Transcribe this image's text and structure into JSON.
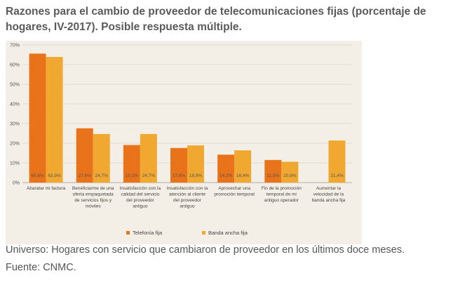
{
  "title": "Razones para el cambio de proveedor de telecomunicaciones fijas (porcentaje de hogares, IV-2017). Posible respuesta múltiple.",
  "chart_data": {
    "type": "bar",
    "categories": [
      "Abaratar mi factura",
      "Beneficiarme de una oferta empaquetada de servicios fijos y móviles",
      "Insatisfacción con la calidad del servicio del proveedor antiguo",
      "Insatisfacción con la atención al cliente del proveedor antiguo",
      "Aprovechar una promoción temporal",
      "Fin de la promoción temporal de mi antiguo operador",
      "Aumentar la velocidad de la banda ancha fija"
    ],
    "category_lines": [
      [
        "Abaratar mi factura"
      ],
      [
        "Beneficiarme de una",
        "oferta empaquetada",
        "de servicios fijos y",
        "móviles"
      ],
      [
        "Insatisfacción con la",
        "calidad del servicio",
        "del proveedor",
        "antiguo"
      ],
      [
        "Insatisfacción con la",
        "atención al cliente",
        "del proveedor",
        "antiguo"
      ],
      [
        "Aprovechar una",
        "promoción temporal"
      ],
      [
        "Fin de la promoción",
        "temporal de mi",
        "antiguo operador"
      ],
      [
        "Aumentar la",
        "velocidad de la",
        "banda ancha fija"
      ]
    ],
    "series": [
      {
        "name": "Telefonía fija",
        "color": "#e8731a",
        "values": [
          65.6,
          27.6,
          19.1,
          17.6,
          14.2,
          11.5,
          null
        ],
        "labels": [
          "65,6%",
          "27,6%",
          "19,1%",
          "17,6%",
          "14,2%",
          "11,5%",
          ""
        ]
      },
      {
        "name": "Banda ancha fija",
        "color": "#f0a830",
        "values": [
          63.9,
          24.7,
          24.7,
          18.9,
          16.4,
          10.6,
          21.4
        ],
        "labels": [
          "63,9%",
          "24,7%",
          "24,7%",
          "18,9%",
          "16,4%",
          "10,6%",
          "21,4%"
        ]
      }
    ],
    "ylim": [
      0,
      70
    ],
    "yticks": [
      "0%",
      "10%",
      "20%",
      "30%",
      "40%",
      "50%",
      "60%",
      "70%"
    ],
    "grid": true,
    "legend_position": "bottom"
  },
  "legend": [
    {
      "label": "Telefonía fija",
      "color": "#e8731a"
    },
    {
      "label": "Banda ancha fija",
      "color": "#f0a830"
    }
  ],
  "universe_note": "Universo: Hogares con servicio que cambiaron de proveedor en los últimos doce meses.",
  "source_note": "Fuente: CNMC."
}
